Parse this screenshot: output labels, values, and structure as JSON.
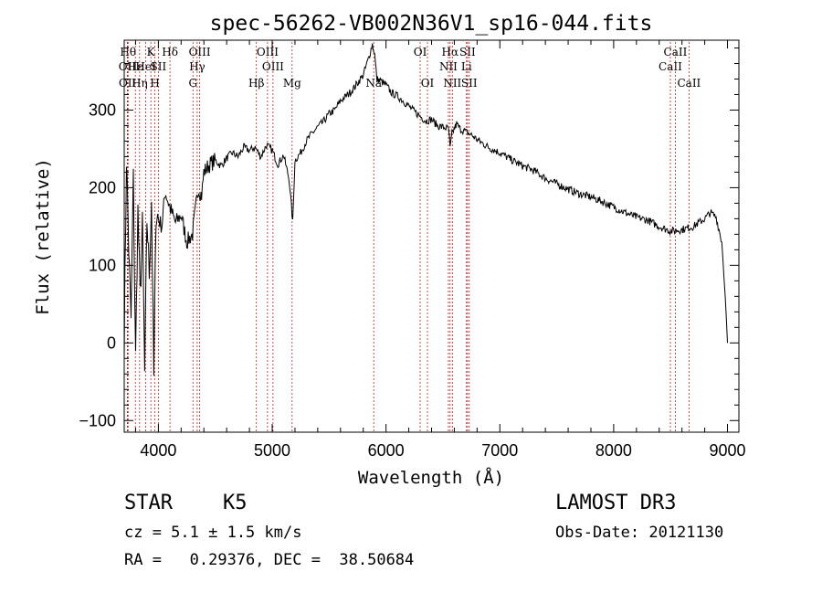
{
  "chart_data": {
    "type": "line",
    "title": "spec-56262-VB002N36V1_sp16-044.fits",
    "xlabel": "Wavelength (Å)",
    "ylabel": "Flux (relative)",
    "xlim": [
      3700,
      9100
    ],
    "ylim": [
      -115,
      390
    ],
    "xticks": [
      4000,
      5000,
      6000,
      7000,
      8000,
      9000
    ],
    "yticks": [
      -100,
      0,
      100,
      200,
      300
    ],
    "xtick_labels": [
      "4000",
      "5000",
      "6000",
      "7000",
      "8000",
      "9000"
    ],
    "ytick_labels": [
      "−100",
      "0",
      "100",
      "200",
      "300"
    ],
    "series": [
      {
        "name": "spectrum",
        "x": [
          3700,
          3720,
          3740,
          3760,
          3780,
          3800,
          3820,
          3840,
          3860,
          3880,
          3900,
          3920,
          3940,
          3960,
          3980,
          4000,
          4030,
          4060,
          4100,
          4150,
          4200,
          4250,
          4300,
          4350,
          4380,
          4400,
          4450,
          4500,
          4550,
          4600,
          4650,
          4700,
          4750,
          4800,
          4850,
          4900,
          4950,
          5000,
          5050,
          5100,
          5150,
          5180,
          5200,
          5250,
          5300,
          5350,
          5400,
          5450,
          5500,
          5550,
          5600,
          5650,
          5700,
          5750,
          5800,
          5850,
          5880,
          5900,
          5920,
          5950,
          6000,
          6050,
          6100,
          6150,
          6200,
          6250,
          6300,
          6350,
          6400,
          6450,
          6500,
          6550,
          6563,
          6580,
          6620,
          6650,
          6700,
          6750,
          6800,
          6900,
          7000,
          7100,
          7200,
          7300,
          7400,
          7500,
          7600,
          7700,
          7800,
          7900,
          8000,
          8100,
          8200,
          8300,
          8400,
          8500,
          8600,
          8700,
          8800,
          8850,
          8900,
          8950,
          8980,
          9000
        ],
        "values": [
          0,
          240,
          120,
          30,
          210,
          -20,
          170,
          60,
          150,
          -40,
          160,
          90,
          185,
          -45,
          170,
          160,
          150,
          195,
          175,
          155,
          165,
          130,
          140,
          200,
          190,
          220,
          230,
          235,
          228,
          238,
          245,
          240,
          252,
          248,
          252,
          240,
          255,
          248,
          230,
          242,
          210,
          155,
          235,
          245,
          260,
          270,
          278,
          285,
          295,
          300,
          312,
          318,
          325,
          335,
          345,
          368,
          385,
          372,
          340,
          338,
          332,
          322,
          318,
          312,
          305,
          298,
          292,
          286,
          288,
          280,
          278,
          276,
          250,
          270,
          282,
          276,
          272,
          268,
          262,
          252,
          245,
          236,
          228,
          222,
          212,
          205,
          198,
          192,
          188,
          182,
          175,
          168,
          162,
          158,
          150,
          144,
          146,
          150,
          160,
          168,
          162,
          130,
          60,
          0
        ]
      }
    ],
    "line_markers": [
      {
        "wl": 3734,
        "label": "Hθ",
        "row": 1
      },
      {
        "wl": 3727,
        "label": "OII",
        "row": 2
      },
      {
        "wl": 3729,
        "label": "OII",
        "row": 3
      },
      {
        "wl": 3798,
        "label": "Hε",
        "row": 2
      },
      {
        "wl": 3835,
        "label": "Hη",
        "row": 3
      },
      {
        "wl": 3889,
        "label": "HeI",
        "row": 2
      },
      {
        "wl": 3934,
        "label": "K",
        "row": 1
      },
      {
        "wl": 3970,
        "label": "H",
        "row": 3
      },
      {
        "wl": 4000,
        "label": "SII",
        "row": 2
      },
      {
        "wl": 4102,
        "label": "Hδ",
        "row": 1
      },
      {
        "wl": 4304,
        "label": "G",
        "row": 3
      },
      {
        "wl": 4341,
        "label": "Hγ",
        "row": 2
      },
      {
        "wl": 4363,
        "label": "OIII",
        "row": 1
      },
      {
        "wl": 4861,
        "label": "Hβ",
        "row": 3
      },
      {
        "wl": 4959,
        "label": "OIII",
        "row": 1
      },
      {
        "wl": 5007,
        "label": "OIII",
        "row": 2
      },
      {
        "wl": 5175,
        "label": "Mg",
        "row": 3
      },
      {
        "wl": 5892,
        "label": "Na",
        "row": 3
      },
      {
        "wl": 6300,
        "label": "OI",
        "row": 1
      },
      {
        "wl": 6364,
        "label": "OI",
        "row": 3
      },
      {
        "wl": 6548,
        "label": "NII",
        "row": 2
      },
      {
        "wl": 6563,
        "label": "Hα",
        "row": 1
      },
      {
        "wl": 6583,
        "label": "NII",
        "row": 3
      },
      {
        "wl": 6707,
        "label": "Li",
        "row": 2
      },
      {
        "wl": 6716,
        "label": "SII",
        "row": 1
      },
      {
        "wl": 6731,
        "label": "SII",
        "row": 3
      },
      {
        "wl": 8498,
        "label": "CaII",
        "row": 2
      },
      {
        "wl": 8542,
        "label": "CaII",
        "row": 1
      },
      {
        "wl": 8662,
        "label": "CaII",
        "row": 3
      }
    ]
  },
  "info": {
    "object_class": "STAR",
    "subclass": "K5",
    "survey": "LAMOST DR3",
    "redshift_line": "cz = 5.1 ± 1.5 km/s",
    "obs_date": "Obs-Date: 20121130",
    "coords": "RA =   0.29376, DEC =  38.50684"
  }
}
